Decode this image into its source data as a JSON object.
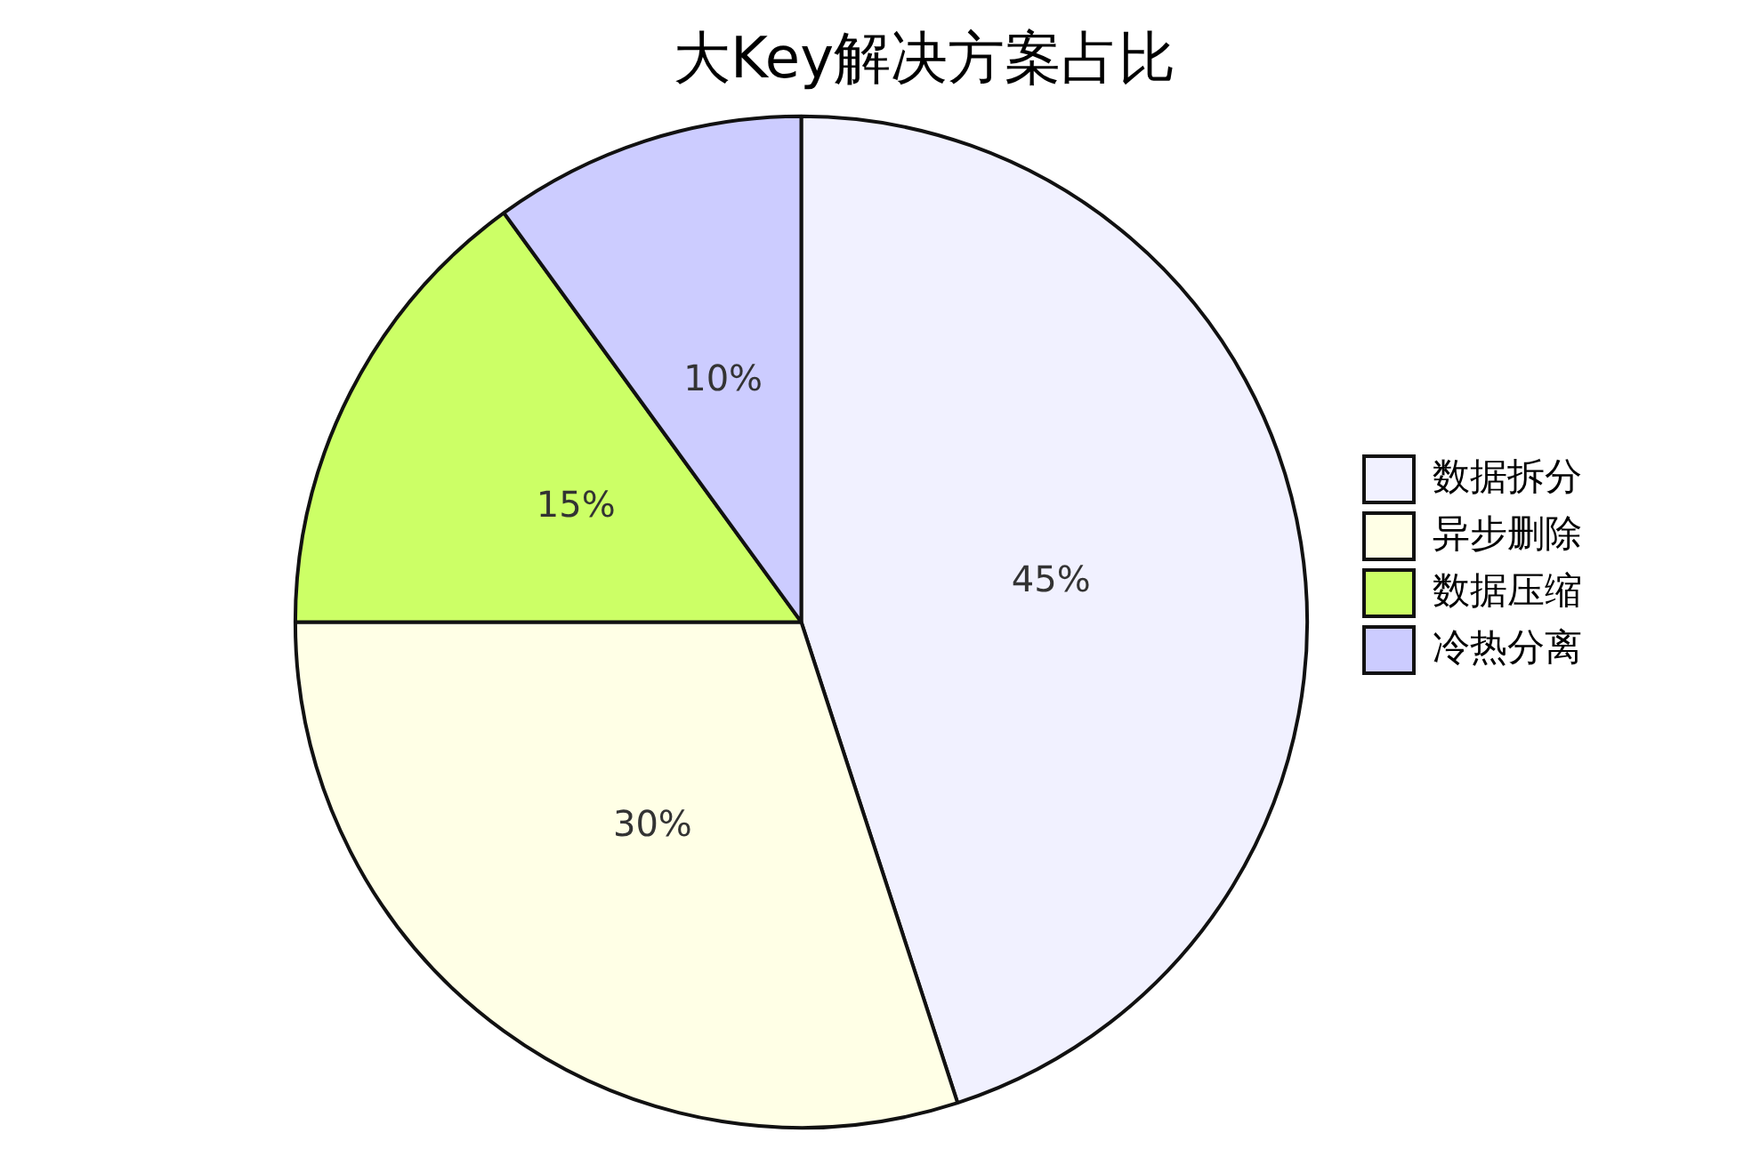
{
  "chart_data": {
    "type": "pie",
    "title": "大Key解决方案占比",
    "categories": [
      "数据拆分",
      "异步删除",
      "数据压缩",
      "冷热分离"
    ],
    "values": [
      45,
      30,
      15,
      10
    ],
    "colors": [
      "#f1f1ff",
      "#ffffe6",
      "#ccff66",
      "#ccccff"
    ],
    "value_labels": [
      "45%",
      "30%",
      "15%",
      "10%"
    ],
    "legend": "right"
  }
}
